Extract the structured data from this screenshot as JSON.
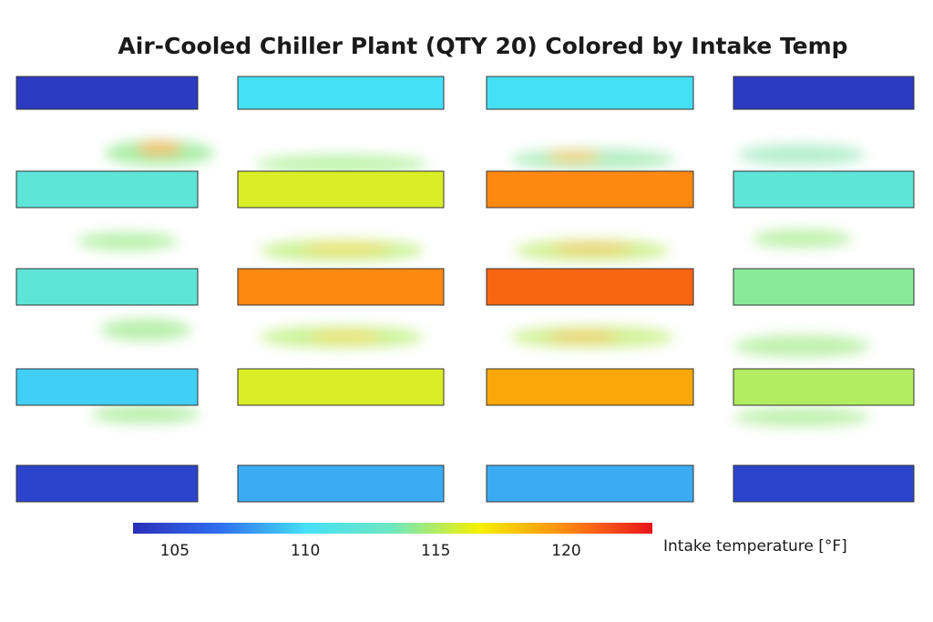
{
  "chart_data": {
    "type": "heatmap",
    "title": "Air-Cooled Chiller Plant (QTY 20) Colored by Intake Temp",
    "values": [
      [
        104,
        110,
        110,
        104
      ],
      [
        112,
        116,
        120,
        112
      ],
      [
        112,
        120,
        121,
        114
      ],
      [
        109.5,
        116,
        119,
        115
      ],
      [
        104.5,
        108.5,
        108.5,
        104.5
      ]
    ],
    "colorbar_label": "Intake temperature [°F]",
    "clim": [
      103.4,
      123.3
    ],
    "cticks": [
      105,
      110,
      115,
      120
    ],
    "colormap": [
      "#2a2fb8",
      "#2f6ff0",
      "#45e0f8",
      "#6fe8c0",
      "#f5f000",
      "#ff8a10",
      "#e8141c"
    ]
  }
}
